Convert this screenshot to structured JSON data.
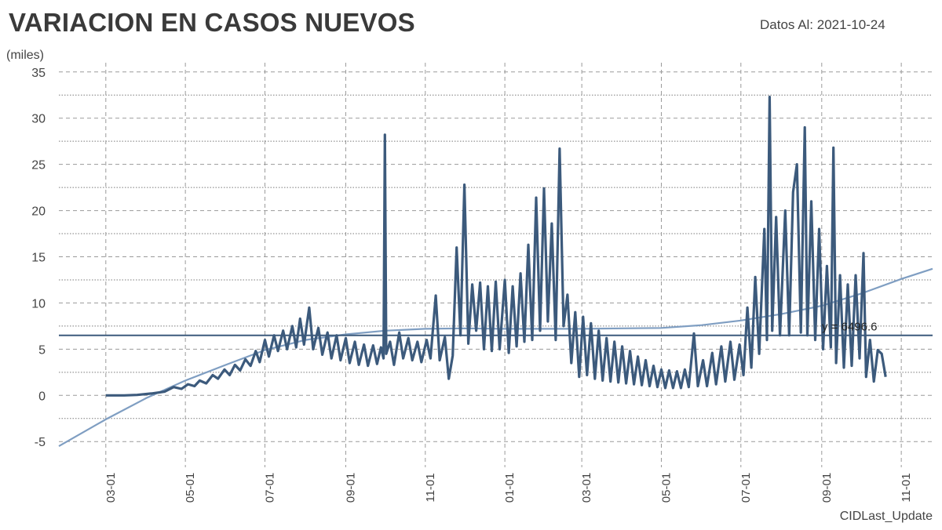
{
  "header": {
    "title": "VARIACION EN CASOS NUEVOS",
    "date_label": "Datos Al: 2021-10-24",
    "y_unit": "(miles)",
    "footer": "CIDLast_Update"
  },
  "colors": {
    "series": "#3c5a7c",
    "trend": "#7f9ec2",
    "mean_line": "#3c5a7c",
    "grid": "#9a9a9a"
  },
  "chart_data": {
    "type": "line",
    "title": "VARIACION EN CASOS NUEVOS",
    "ylabel": "(miles)",
    "ylim": [
      -6,
      36
    ],
    "yticks": [
      -5,
      0,
      5,
      10,
      15,
      20,
      25,
      30,
      35
    ],
    "x_date_range": [
      "2020-01-25",
      "2021-11-25"
    ],
    "xticks": [
      "2020-03-01",
      "2020-05-01",
      "2020-07-01",
      "2020-09-01",
      "2020-11-01",
      "2021-01-01",
      "2021-03-01",
      "2021-05-01",
      "2021-07-01",
      "2021-09-01",
      "2021-11-01"
    ],
    "xtick_labels": [
      "03-01",
      "05-01",
      "07-01",
      "09-01",
      "11-01",
      "01-01",
      "03-01",
      "05-01",
      "07-01",
      "09-01",
      "11-01"
    ],
    "grid": true,
    "mean_value": 6496.6,
    "mean_label": "y = 6496.6",
    "series": [
      {
        "role": "daily",
        "points": [
          [
            "2020-03-01",
            0
          ],
          [
            "2020-03-15",
            0
          ],
          [
            "2020-03-25",
            0.05
          ],
          [
            "2020-04-05",
            0.2
          ],
          [
            "2020-04-15",
            0.4
          ],
          [
            "2020-04-22",
            0.9
          ],
          [
            "2020-04-28",
            0.7
          ],
          [
            "2020-05-03",
            1.2
          ],
          [
            "2020-05-08",
            1.0
          ],
          [
            "2020-05-12",
            1.6
          ],
          [
            "2020-05-17",
            1.3
          ],
          [
            "2020-05-22",
            2.2
          ],
          [
            "2020-05-26",
            1.8
          ],
          [
            "2020-05-31",
            2.8
          ],
          [
            "2020-06-04",
            2.2
          ],
          [
            "2020-06-08",
            3.3
          ],
          [
            "2020-06-12",
            2.7
          ],
          [
            "2020-06-16",
            3.9
          ],
          [
            "2020-06-20",
            3.2
          ],
          [
            "2020-06-24",
            4.8
          ],
          [
            "2020-06-27",
            3.6
          ],
          [
            "2020-07-01",
            6.0
          ],
          [
            "2020-07-04",
            4.2
          ],
          [
            "2020-07-08",
            6.5
          ],
          [
            "2020-07-11",
            4.8
          ],
          [
            "2020-07-15",
            7.0
          ],
          [
            "2020-07-18",
            5.0
          ],
          [
            "2020-07-22",
            7.5
          ],
          [
            "2020-07-25",
            5.2
          ],
          [
            "2020-07-28",
            8.3
          ],
          [
            "2020-07-31",
            5.5
          ],
          [
            "2020-08-04",
            9.5
          ],
          [
            "2020-08-07",
            5.0
          ],
          [
            "2020-08-11",
            7.3
          ],
          [
            "2020-08-14",
            4.4
          ],
          [
            "2020-08-18",
            6.8
          ],
          [
            "2020-08-21",
            4.0
          ],
          [
            "2020-08-25",
            6.5
          ],
          [
            "2020-08-28",
            3.8
          ],
          [
            "2020-09-01",
            6.2
          ],
          [
            "2020-09-04",
            3.5
          ],
          [
            "2020-09-08",
            5.8
          ],
          [
            "2020-09-11",
            3.3
          ],
          [
            "2020-09-15",
            5.5
          ],
          [
            "2020-09-18",
            3.2
          ],
          [
            "2020-09-22",
            5.4
          ],
          [
            "2020-09-25",
            3.4
          ],
          [
            "2020-09-28",
            5.2
          ],
          [
            "2020-09-30",
            4.0
          ],
          [
            "2020-10-01",
            28.2
          ],
          [
            "2020-10-02",
            4.5
          ],
          [
            "2020-10-05",
            5.8
          ],
          [
            "2020-10-08",
            3.3
          ],
          [
            "2020-10-12",
            6.8
          ],
          [
            "2020-10-15",
            4.0
          ],
          [
            "2020-10-19",
            6.2
          ],
          [
            "2020-10-22",
            3.8
          ],
          [
            "2020-10-26",
            5.8
          ],
          [
            "2020-10-29",
            3.6
          ],
          [
            "2020-11-02",
            6.0
          ],
          [
            "2020-11-05",
            4.0
          ],
          [
            "2020-11-09",
            10.8
          ],
          [
            "2020-11-12",
            3.8
          ],
          [
            "2020-11-16",
            6.3
          ],
          [
            "2020-11-19",
            1.8
          ],
          [
            "2020-11-22",
            4.3
          ],
          [
            "2020-11-25",
            16.0
          ],
          [
            "2020-11-28",
            6.5
          ],
          [
            "2020-12-01",
            22.8
          ],
          [
            "2020-12-04",
            5.6
          ],
          [
            "2020-12-07",
            12.0
          ],
          [
            "2020-12-10",
            7.0
          ],
          [
            "2020-12-13",
            12.2
          ],
          [
            "2020-12-16",
            5.0
          ],
          [
            "2020-12-19",
            11.8
          ],
          [
            "2020-12-22",
            4.8
          ],
          [
            "2020-12-25",
            12.3
          ],
          [
            "2020-12-28",
            5.0
          ],
          [
            "2021-01-01",
            12.5
          ],
          [
            "2021-01-04",
            4.6
          ],
          [
            "2021-01-07",
            11.8
          ],
          [
            "2021-01-10",
            5.3
          ],
          [
            "2021-01-13",
            13.2
          ],
          [
            "2021-01-16",
            5.8
          ],
          [
            "2021-01-19",
            16.3
          ],
          [
            "2021-01-22",
            6.0
          ],
          [
            "2021-01-25",
            21.4
          ],
          [
            "2021-01-28",
            7.0
          ],
          [
            "2021-01-31",
            22.4
          ],
          [
            "2021-02-03",
            8.0
          ],
          [
            "2021-02-06",
            18.6
          ],
          [
            "2021-02-09",
            6.0
          ],
          [
            "2021-02-12",
            26.7
          ],
          [
            "2021-02-15",
            7.5
          ],
          [
            "2021-02-18",
            10.9
          ],
          [
            "2021-02-21",
            3.5
          ],
          [
            "2021-02-24",
            9.0
          ],
          [
            "2021-02-27",
            2.0
          ],
          [
            "2021-03-02",
            8.5
          ],
          [
            "2021-03-05",
            2.2
          ],
          [
            "2021-03-08",
            7.8
          ],
          [
            "2021-03-11",
            1.8
          ],
          [
            "2021-03-14",
            7.0
          ],
          [
            "2021-03-17",
            1.6
          ],
          [
            "2021-03-20",
            6.2
          ],
          [
            "2021-03-23",
            1.5
          ],
          [
            "2021-03-26",
            5.8
          ],
          [
            "2021-03-29",
            1.4
          ],
          [
            "2021-04-01",
            5.3
          ],
          [
            "2021-04-04",
            1.3
          ],
          [
            "2021-04-07",
            4.8
          ],
          [
            "2021-04-10",
            1.2
          ],
          [
            "2021-04-13",
            4.2
          ],
          [
            "2021-04-16",
            1.1
          ],
          [
            "2021-04-19",
            3.8
          ],
          [
            "2021-04-22",
            1.0
          ],
          [
            "2021-04-25",
            3.2
          ],
          [
            "2021-04-28",
            0.9
          ],
          [
            "2021-05-01",
            2.8
          ],
          [
            "2021-05-04",
            0.8
          ],
          [
            "2021-05-07",
            2.7
          ],
          [
            "2021-05-10",
            0.8
          ],
          [
            "2021-05-13",
            2.6
          ],
          [
            "2021-05-16",
            0.8
          ],
          [
            "2021-05-19",
            2.8
          ],
          [
            "2021-05-22",
            0.9
          ],
          [
            "2021-05-26",
            6.7
          ],
          [
            "2021-05-29",
            1.0
          ],
          [
            "2021-06-02",
            3.8
          ],
          [
            "2021-06-05",
            1.0
          ],
          [
            "2021-06-09",
            4.6
          ],
          [
            "2021-06-12",
            1.2
          ],
          [
            "2021-06-16",
            5.3
          ],
          [
            "2021-06-19",
            1.5
          ],
          [
            "2021-06-23",
            5.8
          ],
          [
            "2021-06-26",
            1.7
          ],
          [
            "2021-06-30",
            5.5
          ],
          [
            "2021-07-03",
            2.2
          ],
          [
            "2021-07-06",
            9.5
          ],
          [
            "2021-07-09",
            3.0
          ],
          [
            "2021-07-12",
            12.8
          ],
          [
            "2021-07-15",
            4.5
          ],
          [
            "2021-07-19",
            18.0
          ],
          [
            "2021-07-21",
            6.0
          ],
          [
            "2021-07-23",
            32.3
          ],
          [
            "2021-07-25",
            7.0
          ],
          [
            "2021-07-28",
            19.3
          ],
          [
            "2021-07-31",
            6.5
          ],
          [
            "2021-08-04",
            20.0
          ],
          [
            "2021-08-07",
            6.5
          ],
          [
            "2021-08-10",
            22.0
          ],
          [
            "2021-08-13",
            25.0
          ],
          [
            "2021-08-16",
            6.8
          ],
          [
            "2021-08-19",
            29.0
          ],
          [
            "2021-08-21",
            6.5
          ],
          [
            "2021-08-24",
            21.0
          ],
          [
            "2021-08-27",
            6.0
          ],
          [
            "2021-08-30",
            18.0
          ],
          [
            "2021-09-02",
            5.0
          ],
          [
            "2021-09-05",
            14.0
          ],
          [
            "2021-09-08",
            5.2
          ],
          [
            "2021-09-10",
            26.8
          ],
          [
            "2021-09-12",
            3.5
          ],
          [
            "2021-09-15",
            13.0
          ],
          [
            "2021-09-18",
            3.0
          ],
          [
            "2021-09-21",
            12.0
          ],
          [
            "2021-09-24",
            3.2
          ],
          [
            "2021-09-27",
            13.0
          ],
          [
            "2021-09-30",
            4.0
          ],
          [
            "2021-10-03",
            15.4
          ],
          [
            "2021-10-05",
            2.0
          ],
          [
            "2021-10-08",
            6.0
          ],
          [
            "2021-10-11",
            1.5
          ],
          [
            "2021-10-14",
            4.9
          ],
          [
            "2021-10-17",
            4.5
          ],
          [
            "2021-10-20",
            2.0
          ]
        ]
      },
      {
        "role": "trend",
        "points": [
          [
            "2020-01-25",
            -5.5
          ],
          [
            "2020-03-01",
            -2.6
          ],
          [
            "2020-04-01",
            -0.3
          ],
          [
            "2020-05-01",
            1.6
          ],
          [
            "2020-06-01",
            3.3
          ],
          [
            "2020-07-01",
            4.9
          ],
          [
            "2020-08-01",
            6.0
          ],
          [
            "2020-09-01",
            6.6
          ],
          [
            "2020-10-01",
            7.0
          ],
          [
            "2020-11-01",
            7.2
          ],
          [
            "2020-12-01",
            7.25
          ],
          [
            "2021-01-01",
            7.2
          ],
          [
            "2021-02-01",
            7.2
          ],
          [
            "2021-03-01",
            7.2
          ],
          [
            "2021-04-01",
            7.25
          ],
          [
            "2021-05-01",
            7.3
          ],
          [
            "2021-06-01",
            7.6
          ],
          [
            "2021-07-01",
            8.1
          ],
          [
            "2021-08-01",
            8.8
          ],
          [
            "2021-09-01",
            9.7
          ],
          [
            "2021-10-01",
            11.0
          ],
          [
            "2021-11-01",
            12.6
          ],
          [
            "2021-11-25",
            13.7
          ]
        ]
      }
    ]
  }
}
